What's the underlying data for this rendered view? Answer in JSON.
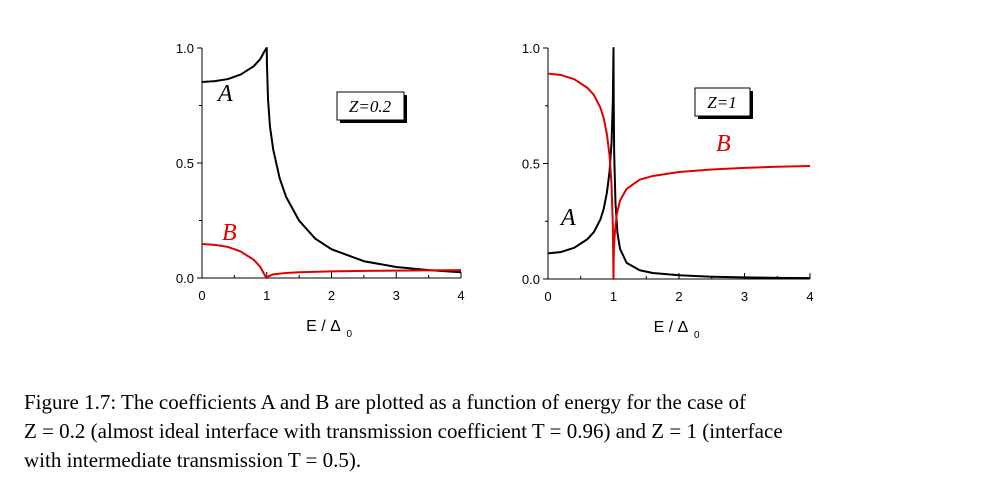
{
  "chart_data": [
    {
      "type": "line",
      "annotation": "Z=0.2",
      "xlabel": "E / Δ",
      "xlabel_sub": "0",
      "ylabel": "",
      "xlim": [
        0,
        4
      ],
      "ylim": [
        0,
        1.0
      ],
      "xticks": [
        "0",
        "1",
        "2",
        "3",
        "4"
      ],
      "yticks": [
        "0.0",
        "0.5",
        "1.0"
      ],
      "grid": false,
      "series": [
        {
          "name": "A",
          "color": "#000000",
          "x": [
            0,
            0.2,
            0.4,
            0.6,
            0.8,
            0.9,
            0.97,
            1.0,
            1.003,
            1.02,
            1.05,
            1.1,
            1.2,
            1.3,
            1.5,
            1.75,
            2.0,
            2.5,
            3.0,
            3.5,
            4.0
          ],
          "y": [
            0.852,
            0.856,
            0.865,
            0.885,
            0.921,
            0.952,
            0.988,
            1.0,
            0.93,
            0.775,
            0.658,
            0.558,
            0.433,
            0.352,
            0.249,
            0.171,
            0.125,
            0.073,
            0.048,
            0.034,
            0.025
          ]
        },
        {
          "name": "B",
          "color": "#e00000",
          "x": [
            0,
            0.2,
            0.4,
            0.6,
            0.8,
            0.9,
            0.97,
            1.0,
            1.03,
            1.1,
            1.3,
            1.5,
            2.0,
            2.5,
            3.0,
            3.5,
            4.0
          ],
          "y": [
            0.148,
            0.144,
            0.135,
            0.115,
            0.079,
            0.048,
            0.012,
            0.0,
            0.008,
            0.016,
            0.022,
            0.025,
            0.029,
            0.031,
            0.032,
            0.033,
            0.034
          ]
        }
      ]
    },
    {
      "type": "line",
      "annotation": "Z=1",
      "xlabel": "E / Δ",
      "xlabel_sub": "0",
      "ylabel": "",
      "xlim": [
        0,
        4
      ],
      "ylim": [
        0,
        1.0
      ],
      "xticks": [
        "0",
        "1",
        "2",
        "3",
        "4"
      ],
      "yticks": [
        "0.0",
        "0.5",
        "1.0"
      ],
      "grid": false,
      "series": [
        {
          "name": "A",
          "color": "#000000",
          "x": [
            0,
            0.2,
            0.4,
            0.6,
            0.7,
            0.8,
            0.85,
            0.9,
            0.94,
            0.97,
            0.99,
            1.0,
            1.003,
            1.01,
            1.03,
            1.06,
            1.1,
            1.2,
            1.4,
            1.6,
            2.0,
            2.5,
            3.0,
            3.5,
            4.0
          ],
          "y": [
            0.111,
            0.117,
            0.135,
            0.172,
            0.203,
            0.258,
            0.303,
            0.375,
            0.466,
            0.59,
            0.77,
            1.0,
            0.78,
            0.55,
            0.33,
            0.2,
            0.13,
            0.07,
            0.038,
            0.026,
            0.016,
            0.01,
            0.007,
            0.005,
            0.004
          ]
        },
        {
          "name": "B",
          "color": "#e00000",
          "x": [
            0,
            0.2,
            0.4,
            0.6,
            0.7,
            0.8,
            0.85,
            0.9,
            0.94,
            0.97,
            0.99,
            1.0,
            1.005,
            1.02,
            1.05,
            1.1,
            1.2,
            1.4,
            1.6,
            2.0,
            2.5,
            3.0,
            3.5,
            4.0
          ],
          "y": [
            0.889,
            0.883,
            0.865,
            0.828,
            0.797,
            0.742,
            0.697,
            0.625,
            0.534,
            0.41,
            0.23,
            0.0,
            0.12,
            0.2,
            0.28,
            0.34,
            0.39,
            0.43,
            0.446,
            0.463,
            0.474,
            0.481,
            0.486,
            0.489
          ]
        }
      ]
    }
  ],
  "caption": {
    "line1": "Figure 1.7:  The coefficients A and B are plotted as a function of energy for the case of",
    "line2": "Z = 0.2 (almost ideal interface with transmission coefficient T = 0.96) and Z = 1 (interface",
    "line3": "with intermediate transmission T = 0.5)."
  }
}
